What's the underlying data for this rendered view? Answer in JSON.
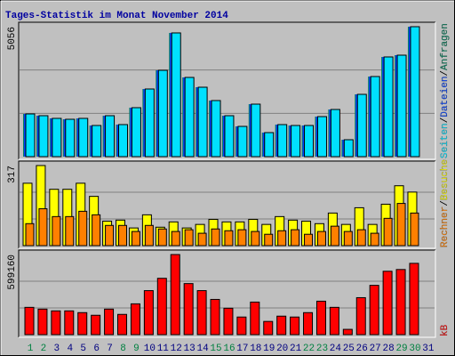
{
  "chart_data": {
    "type": "bar",
    "title": "Tages-Statistik im Monat November 2014",
    "categories": [
      "1",
      "2",
      "3",
      "4",
      "5",
      "6",
      "7",
      "8",
      "9",
      "10",
      "11",
      "12",
      "13",
      "14",
      "15",
      "16",
      "17",
      "18",
      "19",
      "20",
      "21",
      "22",
      "23",
      "24",
      "25",
      "26",
      "27",
      "28",
      "29",
      "30",
      "31"
    ],
    "category_color": "#000080",
    "highlighted_categories": [
      "1",
      "2",
      "8",
      "9",
      "15",
      "16",
      "22",
      "23",
      "29",
      "30"
    ],
    "highlight_color": "#008040",
    "legend_separator": "/",
    "panels": [
      {
        "ylim": [
          0,
          5056
        ],
        "yticks": [
          5056
        ],
        "series": [
          {
            "name": "Anfragen",
            "color": "#00805c",
            "values": [
              1662,
              1593,
              1489,
              1454,
              1489,
              1212,
              1593,
              1247,
              1905,
              2632,
              3359,
              4814,
              3082,
              2701,
              2182,
              1593,
              1177,
              2043,
              935,
              1247,
              1212,
              1212,
              1558,
              1835,
              658,
              2424,
              3117,
              3879,
              3948,
              5056,
              null
            ]
          },
          {
            "name": "Dateien",
            "color": "#0040ff",
            "values": [
              1662,
              1593,
              1489,
              1454,
              1489,
              1212,
              1593,
              1247,
              1905,
              2632,
              3359,
              4814,
              3082,
              2701,
              2182,
              1593,
              1177,
              2043,
              935,
              1247,
              1212,
              1212,
              1558,
              1835,
              658,
              2424,
              3117,
              3879,
              3948,
              5056,
              null
            ]
          },
          {
            "name": "Seiten",
            "color": "#00e0ff",
            "values": [
              1662,
              1593,
              1489,
              1454,
              1489,
              1212,
              1593,
              1247,
              1905,
              2632,
              3359,
              4814,
              3082,
              2701,
              2182,
              1593,
              1177,
              2043,
              935,
              1247,
              1212,
              1212,
              1558,
              1835,
              658,
              2424,
              3117,
              3879,
              3948,
              5056,
              null
            ]
          }
        ]
      },
      {
        "ylim": [
          0,
          317
        ],
        "yticks": [
          317
        ],
        "series": [
          {
            "name": "Besuche",
            "color": "#ffff00",
            "values": [
              247,
              317,
              223,
              223,
              247,
              195,
              97,
              101,
              70,
              122,
              73,
              94,
              70,
              84,
              104,
              94,
              94,
              104,
              84,
              115,
              101,
              97,
              87,
              129,
              84,
              150,
              84,
              164,
              237,
              212,
              null
            ]
          },
          {
            "name": "Rechner",
            "color": "#ff8000",
            "values": [
              87,
              146,
              115,
              115,
              136,
              122,
              80,
              80,
              56,
              80,
              66,
              56,
              63,
              49,
              66,
              59,
              63,
              56,
              45,
              59,
              63,
              45,
              56,
              77,
              56,
              63,
              49,
              108,
              167,
              129,
              null
            ]
          }
        ]
      },
      {
        "ylim": [
          0,
          599160
        ],
        "yticks": [
          599160
        ],
        "series": [
          {
            "name": "kB",
            "color": "#ff0000",
            "values": [
              204104,
              190936,
              177768,
              177768,
              164600,
              144848,
              190936,
              151432,
              230440,
              329200,
              421376,
              599160,
              381872,
              329200,
              263360,
              197520,
              131680,
              243608,
              98760,
              138264,
              131680,
              164600,
              250192,
              204104,
              39504,
              276528,
              368704,
              474048,
              487216,
              533304,
              null
            ]
          }
        ]
      }
    ]
  }
}
